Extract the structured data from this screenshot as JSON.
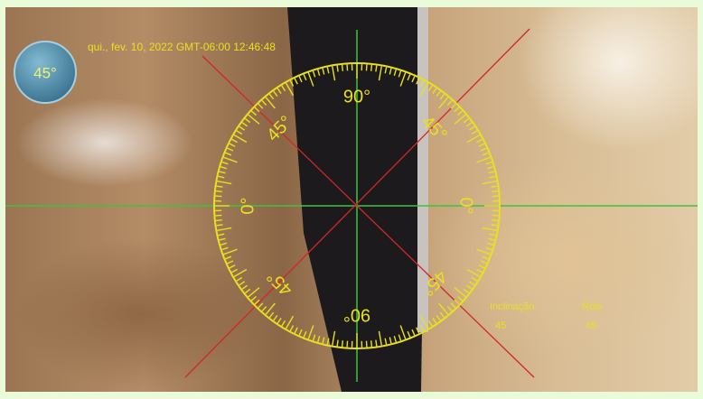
{
  "badge": "45°",
  "timestamp": "qui., fev. 10, 2022 GMT-06:00 12:46:48",
  "dial": {
    "labels": [
      "90°",
      "45°",
      "0°",
      "45°",
      "90°",
      "45°",
      "0°",
      "45°"
    ]
  },
  "readouts": [
    {
      "label": "Inclinação",
      "value": "45"
    },
    {
      "label": "Rolo",
      "value": "45"
    }
  ]
}
